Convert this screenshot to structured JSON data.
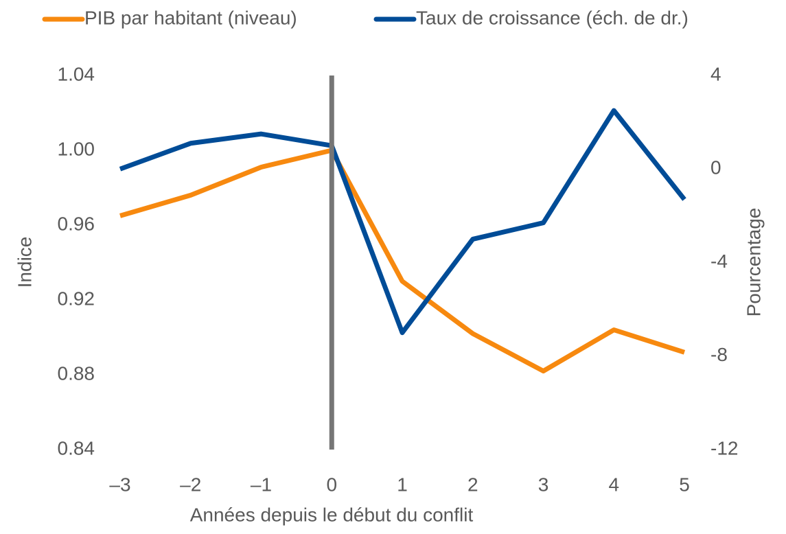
{
  "chart_data": {
    "type": "line",
    "x_label": "Années depuis le début du conflit",
    "y_label": "Indice",
    "y2_label": "Pourcentage",
    "x": [
      -3,
      -2,
      -1,
      0,
      1,
      2,
      3,
      4,
      5
    ],
    "xlim": [
      -3,
      5
    ],
    "xticks": [
      {
        "value": -3,
        "label": "–3"
      },
      {
        "value": -2,
        "label": "–2"
      },
      {
        "value": -1,
        "label": "–1"
      },
      0,
      1,
      2,
      3,
      4,
      5
    ],
    "ylim": [
      0.84,
      1.04
    ],
    "yticks": [
      0.84,
      0.88,
      0.92,
      0.96,
      {
        "value": 1,
        "label": "1.00"
      },
      1.04
    ],
    "y2lim": [
      -12,
      4
    ],
    "y2ticks": [
      -12,
      -8,
      -4,
      0,
      4
    ],
    "vline_x": 0,
    "legend": "top",
    "series": [
      {
        "name": "PIB par habitant (niveau)",
        "color": "#f7890f",
        "axis": "y",
        "values": [
          0.965,
          0.976,
          0.991,
          1.0,
          0.93,
          0.902,
          0.882,
          0.904,
          0.892
        ]
      },
      {
        "name": "Taux de croissance (éch. de dr.)",
        "color": "#004c97",
        "axis": "y2",
        "values": [
          0.0,
          1.1,
          1.5,
          1.0,
          -7.0,
          -3.0,
          -2.3,
          2.5,
          -1.3
        ]
      }
    ]
  }
}
